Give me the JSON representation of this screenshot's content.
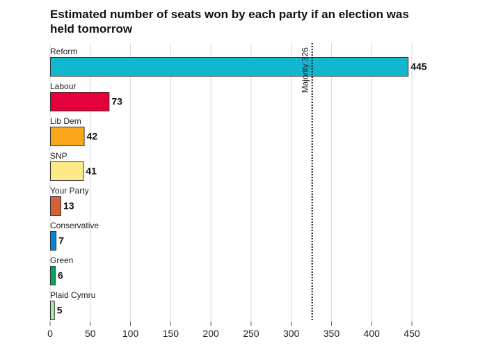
{
  "chart_data": {
    "type": "bar",
    "orientation": "horizontal",
    "title": "Estimated number of seats won by each party if an election was held tomorrow",
    "xlabel": "",
    "ylabel": "",
    "xlim": [
      0,
      450
    ],
    "xticks": [
      0,
      50,
      100,
      150,
      200,
      250,
      300,
      350,
      400,
      450
    ],
    "grid": true,
    "categories": [
      "Reform",
      "Labour",
      "Lib Dem",
      "SNP",
      "Your Party",
      "Conservative",
      "Green",
      "Plaid Cymru"
    ],
    "values": [
      445,
      73,
      42,
      41,
      13,
      7,
      6,
      5
    ],
    "colors": [
      "#12B6CF",
      "#E4003B",
      "#FAA61A",
      "#FDE985",
      "#D3643A",
      "#0087DC",
      "#02A95B",
      "#A6F0A6"
    ],
    "reference_line": {
      "value": 326,
      "label": "Majority 326",
      "style": "dotted"
    }
  }
}
